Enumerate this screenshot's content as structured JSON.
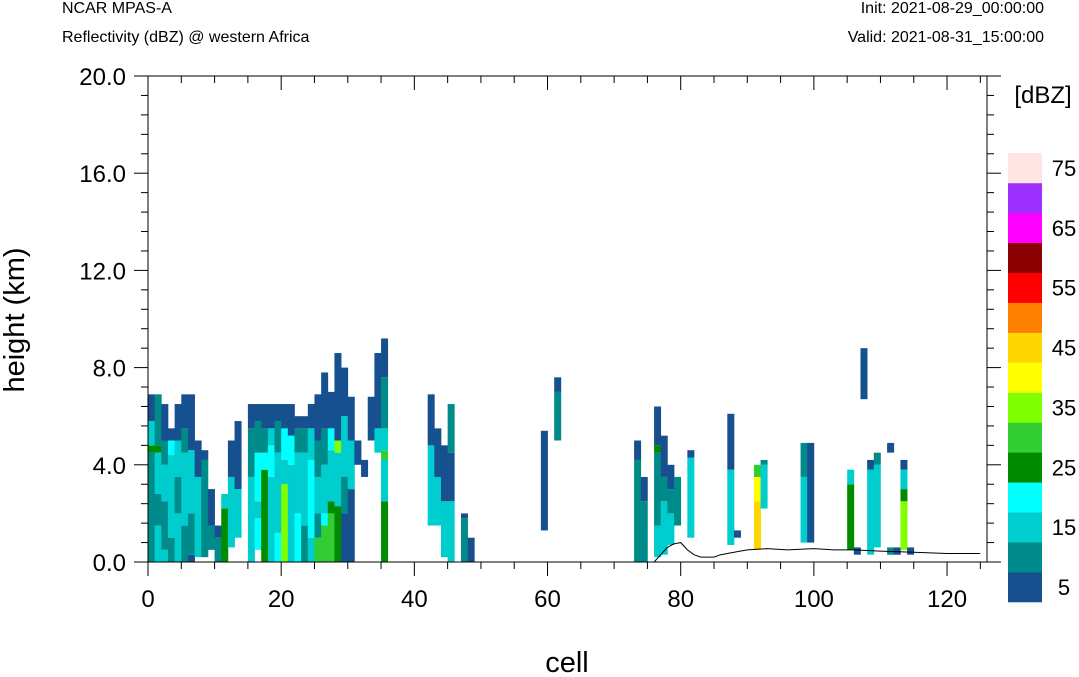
{
  "header": {
    "model": "NCAR MPAS-A",
    "field": "Reflectivity (dBZ) @ western Africa",
    "init": "Init: 2021-08-29_00:00:00",
    "valid": "Valid: 2021-08-31_15:00:00"
  },
  "chart_data": {
    "type": "heatmap",
    "title": "Reflectivity (dBZ) @ western Africa",
    "xlabel": "cell",
    "ylabel": "height (km)",
    "xlim": [
      0,
      126
    ],
    "ylim": [
      0,
      20
    ],
    "x_ticks": [
      "0",
      "20",
      "40",
      "60",
      "80",
      "100",
      "120"
    ],
    "y_ticks": [
      "0.0",
      "4.0",
      "8.0",
      "12.0",
      "16.0",
      "20.0"
    ],
    "colorbar": {
      "unit": "[dBZ]",
      "levels": [
        5,
        10,
        15,
        20,
        25,
        30,
        35,
        40,
        45,
        50,
        55,
        60,
        65,
        70,
        75
      ],
      "labels": [
        "5",
        "15",
        "25",
        "35",
        "45",
        "55",
        "65",
        "75"
      ],
      "colors": [
        "#17508f",
        "#008b8b",
        "#00cdcd",
        "#00ffff",
        "#008b00",
        "#32cd32",
        "#7fff00",
        "#ffff00",
        "#ffd700",
        "#ff7f00",
        "#ff0000",
        "#8b0000",
        "#ff00ff",
        "#9b30ff",
        "#ffe4e1"
      ]
    },
    "grid": false,
    "columns": [
      {
        "x": 0,
        "segments": [
          [
            0,
            4.5,
            10
          ],
          [
            4.5,
            4.8,
            25
          ],
          [
            4.8,
            5.8,
            15
          ],
          [
            5.8,
            6.9,
            5
          ]
        ]
      },
      {
        "x": 1,
        "segments": [
          [
            0,
            1.5,
            15
          ],
          [
            1.5,
            2.8,
            10
          ],
          [
            2.8,
            4.5,
            15
          ],
          [
            4.5,
            4.8,
            25
          ],
          [
            4.8,
            6.9,
            10
          ]
        ]
      },
      {
        "x": 2,
        "segments": [
          [
            0,
            0.5,
            15
          ],
          [
            0.5,
            2.5,
            10
          ],
          [
            2.5,
            4.0,
            15
          ],
          [
            4.0,
            5.0,
            10
          ],
          [
            5.0,
            6.5,
            5
          ]
        ]
      },
      {
        "x": 3,
        "segments": [
          [
            0,
            1.0,
            10
          ],
          [
            1.0,
            4.4,
            15
          ],
          [
            4.4,
            5.0,
            20
          ],
          [
            5.0,
            5.5,
            5
          ]
        ]
      },
      {
        "x": 4,
        "segments": [
          [
            0,
            2.0,
            15
          ],
          [
            2.0,
            3.5,
            10
          ],
          [
            3.5,
            5.0,
            15
          ],
          [
            5.0,
            6.5,
            5
          ]
        ]
      },
      {
        "x": 5,
        "segments": [
          [
            0,
            1.5,
            10
          ],
          [
            1.5,
            4.5,
            15
          ],
          [
            4.5,
            5.5,
            10
          ],
          [
            5.5,
            6.9,
            5
          ]
        ]
      },
      {
        "x": 6,
        "segments": [
          [
            0,
            0.3,
            5
          ],
          [
            0.3,
            2.0,
            10
          ],
          [
            2.0,
            4.6,
            15
          ],
          [
            4.6,
            6.9,
            5
          ]
        ]
      },
      {
        "x": 7,
        "segments": [
          [
            0.2,
            3.5,
            15
          ],
          [
            3.5,
            5.0,
            5
          ]
        ]
      },
      {
        "x": 8,
        "segments": [
          [
            0.2,
            4.2,
            10
          ],
          [
            4.2,
            4.6,
            5
          ]
        ]
      },
      {
        "x": 9,
        "segments": [
          [
            0.5,
            1.5,
            10
          ],
          [
            1.5,
            3.0,
            5
          ]
        ]
      },
      {
        "x": 10,
        "segments": [
          [
            0,
            1.0,
            10
          ],
          [
            1.0,
            1.5,
            5
          ]
        ]
      },
      {
        "x": 11,
        "segments": [
          [
            0,
            2.2,
            25
          ],
          [
            2.2,
            2.8,
            15
          ]
        ]
      },
      {
        "x": 12,
        "segments": [
          [
            0.6,
            3.5,
            15
          ],
          [
            3.5,
            5.0,
            5
          ]
        ]
      },
      {
        "x": 13,
        "segments": [
          [
            1.0,
            3.0,
            15
          ],
          [
            3.0,
            5.8,
            5
          ]
        ]
      },
      {
        "x": 15,
        "segments": [
          [
            0,
            3.5,
            15
          ],
          [
            3.5,
            5.5,
            10
          ],
          [
            5.5,
            6.5,
            5
          ]
        ]
      },
      {
        "x": 16,
        "segments": [
          [
            0.5,
            1.8,
            20
          ],
          [
            1.8,
            2.5,
            15
          ],
          [
            2.5,
            4.5,
            20
          ],
          [
            4.5,
            5.8,
            10
          ],
          [
            5.8,
            6.5,
            5
          ]
        ]
      },
      {
        "x": 17,
        "segments": [
          [
            0,
            3.8,
            25
          ],
          [
            3.8,
            4.5,
            20
          ],
          [
            4.5,
            5.5,
            10
          ],
          [
            5.5,
            6.5,
            5
          ]
        ]
      },
      {
        "x": 18,
        "segments": [
          [
            0,
            3.5,
            15
          ],
          [
            3.5,
            4.8,
            20
          ],
          [
            4.8,
            5.5,
            15
          ],
          [
            5.5,
            6.5,
            5
          ]
        ]
      },
      {
        "x": 19,
        "segments": [
          [
            0,
            1.2,
            20
          ],
          [
            1.2,
            4.5,
            15
          ],
          [
            4.5,
            5.8,
            10
          ],
          [
            5.8,
            6.5,
            5
          ]
        ]
      },
      {
        "x": 20,
        "segments": [
          [
            0,
            3.2,
            35
          ],
          [
            3.2,
            4.2,
            15
          ],
          [
            4.2,
            5.5,
            20
          ],
          [
            5.5,
            6.5,
            5
          ]
        ]
      },
      {
        "x": 21,
        "segments": [
          [
            0,
            4.0,
            15
          ],
          [
            4.0,
            5.2,
            20
          ],
          [
            5.2,
            6.5,
            5
          ]
        ]
      },
      {
        "x": 22,
        "segments": [
          [
            0,
            2.0,
            20
          ],
          [
            2.0,
            4.5,
            15
          ],
          [
            4.5,
            5.5,
            10
          ],
          [
            5.5,
            6.0,
            5
          ]
        ]
      },
      {
        "x": 23,
        "segments": [
          [
            0,
            1.5,
            10
          ],
          [
            1.5,
            4.5,
            15
          ],
          [
            4.5,
            5.5,
            10
          ],
          [
            5.5,
            6.0,
            5
          ]
        ]
      },
      {
        "x": 24,
        "segments": [
          [
            0,
            1.0,
            15
          ],
          [
            1.0,
            4.2,
            20
          ],
          [
            4.2,
            5.5,
            15
          ],
          [
            5.5,
            6.5,
            5
          ]
        ]
      },
      {
        "x": 25,
        "segments": [
          [
            0,
            1.0,
            30
          ],
          [
            1.0,
            2.0,
            10
          ],
          [
            2.0,
            3.5,
            15
          ],
          [
            3.5,
            5.0,
            10
          ],
          [
            5.0,
            6.9,
            5
          ]
        ]
      },
      {
        "x": 26,
        "segments": [
          [
            0,
            1.5,
            30
          ],
          [
            1.5,
            2.0,
            20
          ],
          [
            2.0,
            4.0,
            15
          ],
          [
            4.0,
            5.5,
            10
          ],
          [
            5.5,
            7.8,
            5
          ]
        ]
      },
      {
        "x": 27,
        "segments": [
          [
            0,
            2.0,
            30
          ],
          [
            2.0,
            2.5,
            25
          ],
          [
            2.5,
            4.6,
            15
          ],
          [
            4.6,
            5.5,
            20
          ],
          [
            5.5,
            7.0,
            5
          ]
        ]
      },
      {
        "x": 28,
        "segments": [
          [
            0,
            2.3,
            25
          ],
          [
            2.3,
            4.5,
            15
          ],
          [
            4.5,
            5.0,
            35
          ],
          [
            5.0,
            8.6,
            5
          ]
        ]
      },
      {
        "x": 29,
        "segments": [
          [
            0,
            2.0,
            5
          ],
          [
            2.0,
            3.5,
            10
          ],
          [
            3.5,
            6.0,
            15
          ],
          [
            6.0,
            8.0,
            5
          ]
        ]
      },
      {
        "x": 30,
        "segments": [
          [
            0,
            3.0,
            5
          ],
          [
            3.0,
            5.0,
            15
          ],
          [
            5.0,
            6.8,
            5
          ]
        ]
      },
      {
        "x": 31,
        "segments": [
          [
            4.0,
            5.0,
            5
          ]
        ]
      },
      {
        "x": 32,
        "segments": [
          [
            3.5,
            4.2,
            5
          ]
        ]
      },
      {
        "x": 33,
        "segments": [
          [
            5.0,
            6.8,
            5
          ]
        ]
      },
      {
        "x": 34,
        "segments": [
          [
            4.5,
            5.5,
            15
          ],
          [
            5.5,
            8.6,
            5
          ]
        ]
      },
      {
        "x": 35,
        "segments": [
          [
            0,
            2.5,
            25
          ],
          [
            2.5,
            4.2,
            15
          ],
          [
            4.2,
            4.6,
            30
          ],
          [
            4.6,
            5.5,
            15
          ],
          [
            5.5,
            7.6,
            10
          ],
          [
            7.6,
            9.2,
            5
          ]
        ]
      },
      {
        "x": 42,
        "segments": [
          [
            1.5,
            4.8,
            15
          ],
          [
            4.8,
            6.9,
            5
          ]
        ]
      },
      {
        "x": 43,
        "segments": [
          [
            1.5,
            3.5,
            15
          ],
          [
            3.5,
            5.5,
            5
          ]
        ]
      },
      {
        "x": 44,
        "segments": [
          [
            0.2,
            2.5,
            15
          ],
          [
            2.5,
            4.8,
            5
          ]
        ]
      },
      {
        "x": 45,
        "segments": [
          [
            0,
            2.5,
            15
          ],
          [
            2.5,
            4.5,
            5
          ],
          [
            4.5,
            6.5,
            10
          ]
        ]
      },
      {
        "x": 47,
        "segments": [
          [
            0,
            1.8,
            10
          ],
          [
            1.8,
            2.0,
            5
          ]
        ]
      },
      {
        "x": 48,
        "segments": [
          [
            0,
            1.0,
            5
          ]
        ]
      },
      {
        "x": 59,
        "segments": [
          [
            1.3,
            5.4,
            5
          ]
        ]
      },
      {
        "x": 61,
        "segments": [
          [
            5.0,
            7.0,
            10
          ],
          [
            7.0,
            7.6,
            5
          ]
        ]
      },
      {
        "x": 73,
        "segments": [
          [
            0,
            4.2,
            10
          ],
          [
            4.2,
            5.0,
            5
          ]
        ]
      },
      {
        "x": 74,
        "segments": [
          [
            0,
            2.5,
            10
          ],
          [
            2.5,
            3.5,
            5
          ]
        ]
      },
      {
        "x": 76,
        "segments": [
          [
            0.2,
            1.5,
            15
          ],
          [
            1.5,
            4.5,
            10
          ],
          [
            4.5,
            4.8,
            25
          ],
          [
            4.8,
            6.4,
            5
          ]
        ]
      },
      {
        "x": 77,
        "segments": [
          [
            0.3,
            2.5,
            15
          ],
          [
            2.5,
            3.5,
            10
          ],
          [
            3.5,
            5.2,
            5
          ]
        ]
      },
      {
        "x": 78,
        "segments": [
          [
            0.7,
            2.0,
            15
          ],
          [
            2.0,
            3.0,
            10
          ],
          [
            3.0,
            4.0,
            5
          ]
        ]
      },
      {
        "x": 79,
        "segments": [
          [
            1.5,
            3.5,
            10
          ]
        ]
      },
      {
        "x": 81,
        "segments": [
          [
            1.0,
            4.3,
            15
          ],
          [
            4.3,
            4.6,
            5
          ]
        ]
      },
      {
        "x": 87,
        "segments": [
          [
            0.7,
            3.8,
            15
          ],
          [
            3.8,
            6.1,
            5
          ]
        ]
      },
      {
        "x": 88,
        "segments": [
          [
            1.0,
            1.3,
            5
          ]
        ]
      },
      {
        "x": 91,
        "segments": [
          [
            0.5,
            2.5,
            45
          ],
          [
            2.5,
            3.5,
            40
          ],
          [
            3.5,
            4.0,
            30
          ]
        ]
      },
      {
        "x": 92,
        "segments": [
          [
            2.2,
            4.0,
            15
          ],
          [
            4.0,
            4.2,
            10
          ]
        ]
      },
      {
        "x": 98,
        "segments": [
          [
            0.8,
            3.5,
            15
          ],
          [
            3.5,
            4.9,
            10
          ]
        ]
      },
      {
        "x": 99,
        "segments": [
          [
            0.8,
            4.9,
            5
          ]
        ]
      },
      {
        "x": 105,
        "segments": [
          [
            0.5,
            3.2,
            25
          ],
          [
            3.2,
            3.8,
            15
          ]
        ]
      },
      {
        "x": 106,
        "segments": [
          [
            0.3,
            0.6,
            5
          ]
        ]
      },
      {
        "x": 107,
        "segments": [
          [
            6.7,
            8.8,
            5
          ]
        ]
      },
      {
        "x": 108,
        "segments": [
          [
            0.3,
            3.8,
            15
          ],
          [
            3.8,
            4.2,
            5
          ]
        ]
      },
      {
        "x": 109,
        "segments": [
          [
            0.6,
            4.0,
            15
          ],
          [
            4.0,
            4.5,
            10
          ]
        ]
      },
      {
        "x": 111,
        "segments": [
          [
            0.3,
            0.6,
            10
          ],
          [
            4.5,
            4.9,
            5
          ]
        ]
      },
      {
        "x": 112,
        "segments": [
          [
            0.3,
            0.6,
            5
          ]
        ]
      },
      {
        "x": 113,
        "segments": [
          [
            0.5,
            2.5,
            35
          ],
          [
            2.5,
            3.0,
            25
          ],
          [
            3.0,
            3.8,
            15
          ],
          [
            3.8,
            4.2,
            5
          ]
        ]
      },
      {
        "x": 114,
        "segments": [
          [
            0.3,
            0.6,
            5
          ]
        ]
      }
    ],
    "terrain": [
      [
        0,
        0
      ],
      [
        76,
        0
      ],
      [
        77,
        0.3
      ],
      [
        78,
        0.6
      ],
      [
        79,
        0.75
      ],
      [
        80,
        0.8
      ],
      [
        81,
        0.5
      ],
      [
        82,
        0.3
      ],
      [
        83,
        0.2
      ],
      [
        85,
        0.2
      ],
      [
        86,
        0.3
      ],
      [
        88,
        0.4
      ],
      [
        90,
        0.5
      ],
      [
        93,
        0.55
      ],
      [
        96,
        0.5
      ],
      [
        100,
        0.55
      ],
      [
        103,
        0.5
      ],
      [
        106,
        0.5
      ],
      [
        110,
        0.45
      ],
      [
        115,
        0.4
      ],
      [
        120,
        0.35
      ],
      [
        125,
        0.35
      ]
    ]
  }
}
